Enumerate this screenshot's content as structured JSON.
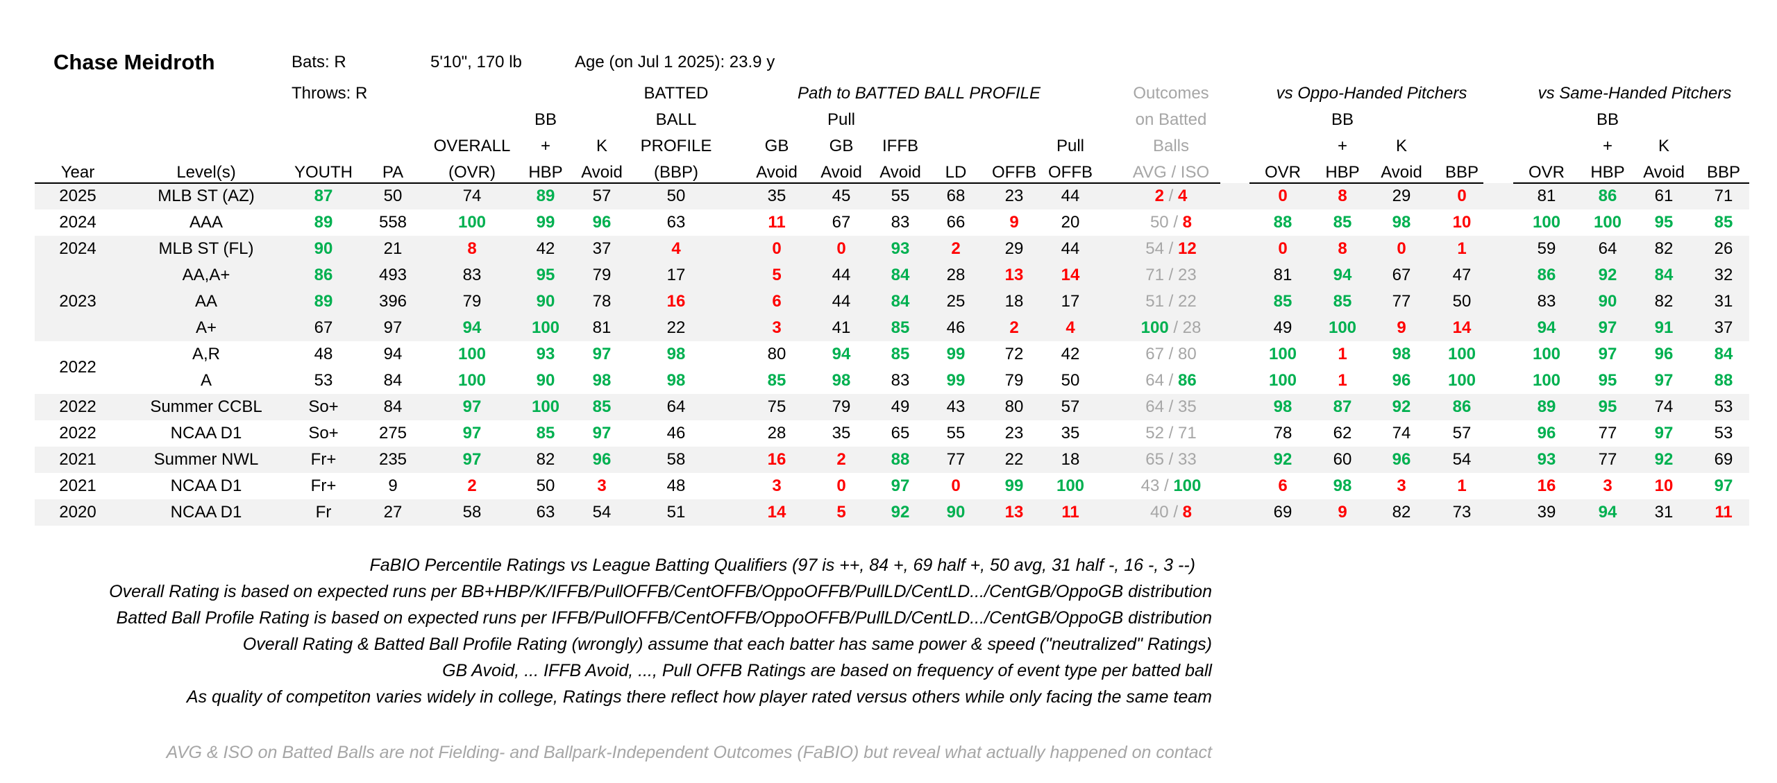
{
  "player": {
    "name": "Chase Meidroth",
    "bats": "Bats: R",
    "throws": "Throws: R",
    "size": "5'10\", 170 lb",
    "age": "Age (on Jul 1 2025): 23.9 y"
  },
  "group_headers": {
    "path": "Path to BATTED BALL PROFILE",
    "outcomes": [
      "Outcomes",
      "on Batted",
      "Balls"
    ],
    "oppo": "vs Oppo-Handed Pitchers",
    "same": "vs Same-Handed Pitchers"
  },
  "columns": [
    [
      "",
      "",
      "",
      "Year"
    ],
    [
      "",
      "",
      "",
      "Level(s)"
    ],
    [
      "",
      "",
      "",
      "YOUTH"
    ],
    [
      "",
      "",
      "",
      "PA"
    ],
    [
      "",
      "",
      "OVERALL",
      "(OVR)"
    ],
    [
      "",
      "BB",
      "+",
      "HBP"
    ],
    [
      "",
      "",
      "K",
      "Avoid"
    ],
    [
      "BATTED",
      "BALL",
      "PROFILE",
      "(BBP)"
    ],
    [
      "",
      "",
      "GB",
      "Avoid"
    ],
    [
      "",
      "Pull",
      "GB",
      "Avoid"
    ],
    [
      "",
      "",
      "IFFB",
      "Avoid"
    ],
    [
      "",
      "",
      "",
      "LD"
    ],
    [
      "",
      "",
      "",
      "OFFB"
    ],
    [
      "",
      "",
      "Pull",
      "OFFB"
    ],
    [
      "",
      "",
      "",
      "AVG  /  ISO"
    ],
    [
      "",
      "",
      "",
      "OVR"
    ],
    [
      "",
      "BB",
      "+",
      "HBP"
    ],
    [
      "",
      "",
      "K",
      "Avoid"
    ],
    [
      "",
      "",
      "",
      "BBP"
    ],
    [
      "",
      "",
      "",
      "OVR"
    ],
    [
      "",
      "BB",
      "+",
      "HBP"
    ],
    [
      "",
      "",
      "K",
      "Avoid"
    ],
    [
      "",
      "",
      "",
      "BBP"
    ]
  ],
  "rows": [
    {
      "year": "2025",
      "level": "MLB ST (AZ)",
      "youth": "87",
      "pa": "50",
      "ovr": "74",
      "bbhbp": "89",
      "kavoid": "57",
      "bbp": "50",
      "gb": "35",
      "pullgb": "45",
      "iffb": "55",
      "ld": "68",
      "offb": "23",
      "pulloffb": "44",
      "avg": "2",
      "iso": "4",
      "o_ovr": "0",
      "o_bbhbp": "8",
      "o_k": "29",
      "o_bbp": "0",
      "s_ovr": "81",
      "s_bbhbp": "86",
      "s_k": "61",
      "s_bbp": "71"
    },
    {
      "year": "2024",
      "level": "AAA",
      "youth": "89",
      "pa": "558",
      "ovr": "100",
      "bbhbp": "99",
      "kavoid": "96",
      "bbp": "63",
      "gb": "11",
      "pullgb": "67",
      "iffb": "83",
      "ld": "66",
      "offb": "9",
      "pulloffb": "20",
      "avg": "50",
      "iso": "8",
      "o_ovr": "88",
      "o_bbhbp": "85",
      "o_k": "98",
      "o_bbp": "10",
      "s_ovr": "100",
      "s_bbhbp": "100",
      "s_k": "95",
      "s_bbp": "85"
    },
    {
      "year": "2024",
      "level": "MLB ST (FL)",
      "youth": "90",
      "pa": "21",
      "ovr": "8",
      "bbhbp": "42",
      "kavoid": "37",
      "bbp": "4",
      "gb": "0",
      "pullgb": "0",
      "iffb": "93",
      "ld": "2",
      "offb": "29",
      "pulloffb": "44",
      "avg": "54",
      "iso": "12",
      "o_ovr": "0",
      "o_bbhbp": "8",
      "o_k": "0",
      "o_bbp": "1",
      "s_ovr": "59",
      "s_bbhbp": "64",
      "s_k": "82",
      "s_bbp": "26"
    },
    {
      "year": "",
      "level": "AA,A+",
      "youth": "86",
      "pa": "493",
      "ovr": "83",
      "bbhbp": "95",
      "kavoid": "79",
      "bbp": "17",
      "gb": "5",
      "pullgb": "44",
      "iffb": "84",
      "ld": "28",
      "offb": "13",
      "pulloffb": "14",
      "avg": "71",
      "iso": "23",
      "o_ovr": "81",
      "o_bbhbp": "94",
      "o_k": "67",
      "o_bbp": "47",
      "s_ovr": "86",
      "s_bbhbp": "92",
      "s_k": "84",
      "s_bbp": "32"
    },
    {
      "year": "2023",
      "level": "AA",
      "youth": "89",
      "pa": "396",
      "ovr": "79",
      "bbhbp": "90",
      "kavoid": "78",
      "bbp": "16",
      "gb": "6",
      "pullgb": "44",
      "iffb": "84",
      "ld": "25",
      "offb": "18",
      "pulloffb": "17",
      "avg": "51",
      "iso": "22",
      "o_ovr": "85",
      "o_bbhbp": "85",
      "o_k": "77",
      "o_bbp": "50",
      "s_ovr": "83",
      "s_bbhbp": "90",
      "s_k": "82",
      "s_bbp": "31"
    },
    {
      "year": "",
      "level": "A+",
      "youth": "67",
      "pa": "97",
      "ovr": "94",
      "bbhbp": "100",
      "kavoid": "81",
      "bbp": "22",
      "gb": "3",
      "pullgb": "41",
      "iffb": "85",
      "ld": "46",
      "offb": "2",
      "pulloffb": "4",
      "avg": "100",
      "iso": "28",
      "o_ovr": "49",
      "o_bbhbp": "100",
      "o_k": "9",
      "o_bbp": "14",
      "s_ovr": "94",
      "s_bbhbp": "97",
      "s_k": "91",
      "s_bbp": "37"
    },
    {
      "year": "",
      "level": "A,R",
      "youth": "48",
      "pa": "94",
      "ovr": "100",
      "bbhbp": "93",
      "kavoid": "97",
      "bbp": "98",
      "gb": "80",
      "pullgb": "94",
      "iffb": "85",
      "ld": "99",
      "offb": "72",
      "pulloffb": "42",
      "avg": "67",
      "iso": "80",
      "o_ovr": "100",
      "o_bbhbp": "1",
      "o_k": "98",
      "o_bbp": "100",
      "s_ovr": "100",
      "s_bbhbp": "97",
      "s_k": "96",
      "s_bbp": "84"
    },
    {
      "year": "2022",
      "level": "A",
      "youth": "53",
      "pa": "84",
      "ovr": "100",
      "bbhbp": "90",
      "kavoid": "98",
      "bbp": "98",
      "gb": "85",
      "pullgb": "98",
      "iffb": "83",
      "ld": "99",
      "offb": "79",
      "pulloffb": "50",
      "avg": "64",
      "iso": "86",
      "o_ovr": "100",
      "o_bbhbp": "1",
      "o_k": "96",
      "o_bbp": "100",
      "s_ovr": "100",
      "s_bbhbp": "95",
      "s_k": "97",
      "s_bbp": "88"
    },
    {
      "year": "2022",
      "level": "Summer CCBL",
      "youth": "So+",
      "pa": "84",
      "ovr": "97",
      "bbhbp": "100",
      "kavoid": "85",
      "bbp": "64",
      "gb": "75",
      "pullgb": "79",
      "iffb": "49",
      "ld": "43",
      "offb": "80",
      "pulloffb": "57",
      "avg": "64",
      "iso": "35",
      "o_ovr": "98",
      "o_bbhbp": "87",
      "o_k": "92",
      "o_bbp": "86",
      "s_ovr": "89",
      "s_bbhbp": "95",
      "s_k": "74",
      "s_bbp": "53"
    },
    {
      "year": "2022",
      "level": "NCAA D1",
      "youth": "So+",
      "pa": "275",
      "ovr": "97",
      "bbhbp": "85",
      "kavoid": "97",
      "bbp": "46",
      "gb": "28",
      "pullgb": "35",
      "iffb": "65",
      "ld": "55",
      "offb": "23",
      "pulloffb": "35",
      "avg": "52",
      "iso": "71",
      "o_ovr": "78",
      "o_bbhbp": "62",
      "o_k": "74",
      "o_bbp": "57",
      "s_ovr": "96",
      "s_bbhbp": "77",
      "s_k": "97",
      "s_bbp": "53"
    },
    {
      "year": "2021",
      "level": "Summer NWL",
      "youth": "Fr+",
      "pa": "235",
      "ovr": "97",
      "bbhbp": "82",
      "kavoid": "96",
      "bbp": "58",
      "gb": "16",
      "pullgb": "2",
      "iffb": "88",
      "ld": "77",
      "offb": "22",
      "pulloffb": "18",
      "avg": "65",
      "iso": "33",
      "o_ovr": "92",
      "o_bbhbp": "60",
      "o_k": "96",
      "o_bbp": "54",
      "s_ovr": "93",
      "s_bbhbp": "77",
      "s_k": "92",
      "s_bbp": "69"
    },
    {
      "year": "2021",
      "level": "NCAA D1",
      "youth": "Fr+",
      "pa": "9",
      "ovr": "2",
      "bbhbp": "50",
      "kavoid": "3",
      "bbp": "48",
      "gb": "3",
      "pullgb": "0",
      "iffb": "97",
      "ld": "0",
      "offb": "99",
      "pulloffb": "100",
      "avg": "43",
      "iso": "100",
      "o_ovr": "6",
      "o_bbhbp": "98",
      "o_k": "3",
      "o_bbp": "1",
      "s_ovr": "16",
      "s_bbhbp": "3",
      "s_k": "10",
      "s_bbp": "97"
    },
    {
      "year": "2020",
      "level": "NCAA D1",
      "youth": "Fr",
      "pa": "27",
      "ovr": "58",
      "bbhbp": "63",
      "kavoid": "54",
      "bbp": "51",
      "gb": "14",
      "pullgb": "5",
      "iffb": "92",
      "ld": "90",
      "offb": "13",
      "pulloffb": "11",
      "avg": "40",
      "iso": "8",
      "o_ovr": "69",
      "o_bbhbp": "9",
      "o_k": "82",
      "o_bbp": "73",
      "s_ovr": "39",
      "s_bbhbp": "94",
      "s_k": "31",
      "s_bbp": "11"
    }
  ],
  "footnotes": [
    "FaBIO Percentile Ratings vs League Batting Qualifiers (97 is ++, 84 +, 69 half +, 50 avg, 31 half -, 16 -, 3 --)",
    "Overall Rating is based on expected runs per BB+HBP/K/IFFB/PullOFFB/CentOFFB/OppoOFFB/PullLD/CentLD.../CentGB/OppoGB distribution",
    "Batted Ball Profile Rating is based on expected runs per IFFB/PullOFFB/CentOFFB/OppoOFFB/PullLD/CentLD.../CentGB/OppoGB distribution",
    "Overall Rating & Batted Ball Profile Rating (wrongly) assume that each batter has same power & speed (\"neutralized\" Ratings)",
    "GB Avoid, ... IFFB Avoid, ..., Pull OFFB Ratings are based on frequency of event type per batted ball",
    "As quality of competiton varies widely in college, Ratings there reflect how player rated versus others while only facing the same team"
  ],
  "footnote_grey": "AVG & ISO on Batted Balls are not Fielding- and Ballpark-Independent Outcomes (FaBIO) but reveal what actually happened on contact",
  "colors": {
    "green": "#00b050",
    "red": "#ff0000",
    "grey": "#a6a6a6",
    "stripe": "#f2f2f2"
  }
}
